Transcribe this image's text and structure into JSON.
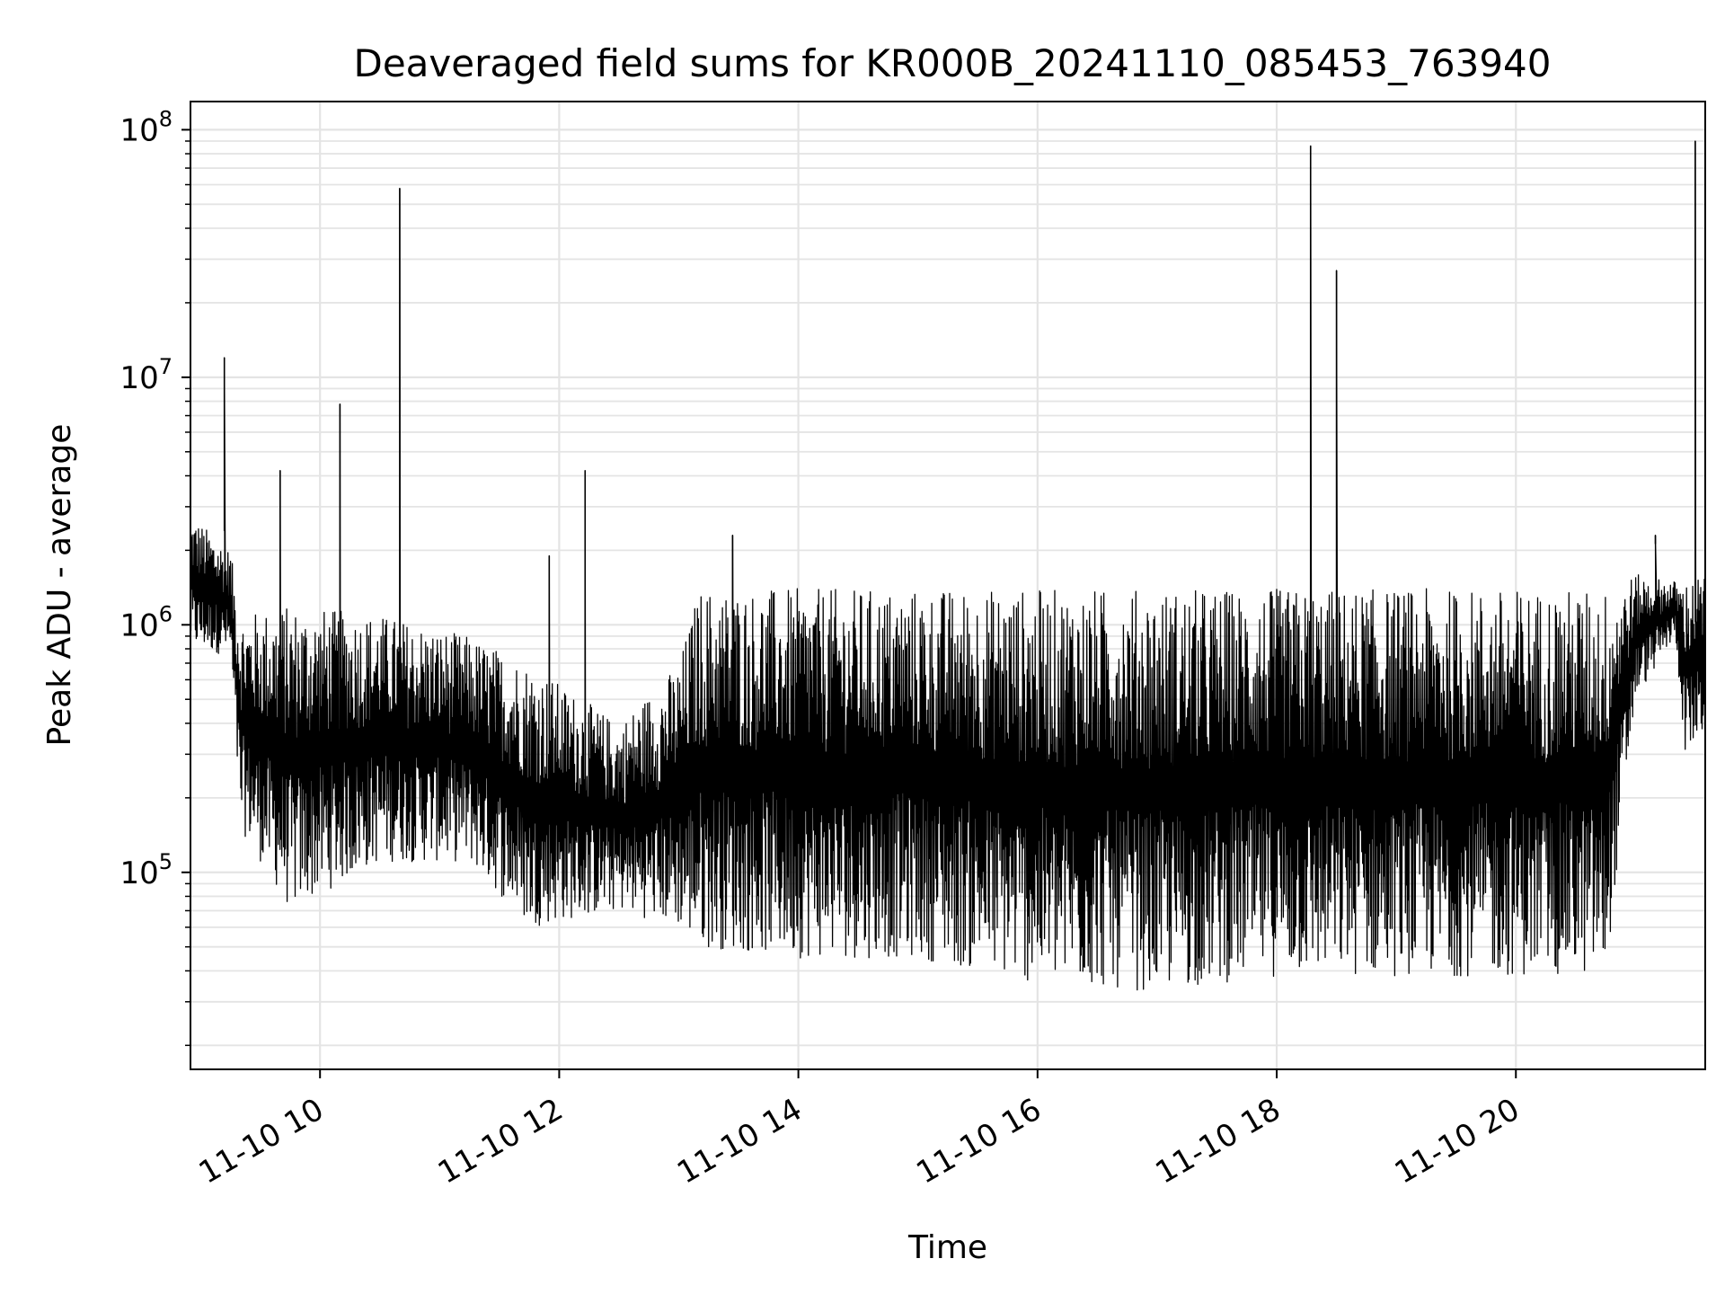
{
  "chart_data": {
    "type": "line",
    "title": "Deaveraged field sums for KR000B_20241110_085453_763940",
    "xlabel": "Time",
    "ylabel": "Peak ADU - average",
    "yscale": "log",
    "ylim": [
      16000,
      130000000
    ],
    "xlim": [
      "2024-11-10 08:55",
      "2024-11-10 21:35"
    ],
    "grid": true,
    "line_color": "#000000",
    "x_ticks": [
      {
        "value": "2024-11-10 10:00",
        "label": "11-10 10"
      },
      {
        "value": "2024-11-10 12:00",
        "label": "11-10 12"
      },
      {
        "value": "2024-11-10 14:00",
        "label": "11-10 14"
      },
      {
        "value": "2024-11-10 16:00",
        "label": "11-10 16"
      },
      {
        "value": "2024-11-10 18:00",
        "label": "11-10 18"
      },
      {
        "value": "2024-11-10 20:00",
        "label": "11-10 20"
      }
    ],
    "y_ticks": [
      {
        "value": 100000,
        "base": "10",
        "exp": "5"
      },
      {
        "value": 1000000,
        "base": "10",
        "exp": "6"
      },
      {
        "value": 10000000,
        "base": "10",
        "exp": "7"
      },
      {
        "value": 100000000,
        "base": "10",
        "exp": "8"
      }
    ],
    "series": [
      {
        "envelope": [
          {
            "t": "2024-11-10 08:55",
            "lo": 800000,
            "hi": 2800000
          },
          {
            "t": "2024-11-10 09:15",
            "lo": 750000,
            "hi": 2000000
          },
          {
            "t": "2024-11-10 09:20",
            "lo": 150000,
            "hi": 1100000
          },
          {
            "t": "2024-11-10 09:45",
            "lo": 70000,
            "hi": 1200000
          },
          {
            "t": "2024-11-10 10:30",
            "lo": 110000,
            "hi": 1100000
          },
          {
            "t": "2024-11-10 11:15",
            "lo": 110000,
            "hi": 900000
          },
          {
            "t": "2024-11-10 11:45",
            "lo": 60000,
            "hi": 700000
          },
          {
            "t": "2024-11-10 12:30",
            "lo": 70000,
            "hi": 400000
          },
          {
            "t": "2024-11-10 13:00",
            "lo": 60000,
            "hi": 700000
          },
          {
            "t": "2024-11-10 13:10",
            "lo": 50000,
            "hi": 1400000
          },
          {
            "t": "2024-11-10 14:00",
            "lo": 45000,
            "hi": 1400000
          },
          {
            "t": "2024-11-10 15:00",
            "lo": 45000,
            "hi": 1400000
          },
          {
            "t": "2024-11-10 16:00",
            "lo": 35000,
            "hi": 1400000
          },
          {
            "t": "2024-11-10 17:00",
            "lo": 33000,
            "hi": 1400000
          },
          {
            "t": "2024-11-10 18:00",
            "lo": 38000,
            "hi": 1400000
          },
          {
            "t": "2024-11-10 19:00",
            "lo": 38000,
            "hi": 1400000
          },
          {
            "t": "2024-11-10 20:00",
            "lo": 38000,
            "hi": 1400000
          },
          {
            "t": "2024-11-10 20:45",
            "lo": 38000,
            "hi": 1400000
          },
          {
            "t": "2024-11-10 21:00",
            "lo": 500000,
            "hi": 1600000
          },
          {
            "t": "2024-11-10 21:20",
            "lo": 900000,
            "hi": 1500000
          },
          {
            "t": "2024-11-10 21:25",
            "lo": 300000,
            "hi": 1500000
          },
          {
            "t": "2024-11-10 21:35",
            "lo": 350000,
            "hi": 1600000
          }
        ],
        "spikes": [
          {
            "t": "2024-11-10 09:12",
            "v": 12000000
          },
          {
            "t": "2024-11-10 09:40",
            "v": 4200000
          },
          {
            "t": "2024-11-10 10:10",
            "v": 7800000
          },
          {
            "t": "2024-11-10 10:40",
            "v": 58000000
          },
          {
            "t": "2024-11-10 11:55",
            "v": 1900000
          },
          {
            "t": "2024-11-10 12:13",
            "v": 4200000
          },
          {
            "t": "2024-11-10 13:27",
            "v": 2300000
          },
          {
            "t": "2024-11-10 18:17",
            "v": 86000000
          },
          {
            "t": "2024-11-10 18:30",
            "v": 27000000
          },
          {
            "t": "2024-11-10 21:10",
            "v": 2300000
          },
          {
            "t": "2024-11-10 21:30",
            "v": 90000000
          }
        ]
      }
    ]
  }
}
